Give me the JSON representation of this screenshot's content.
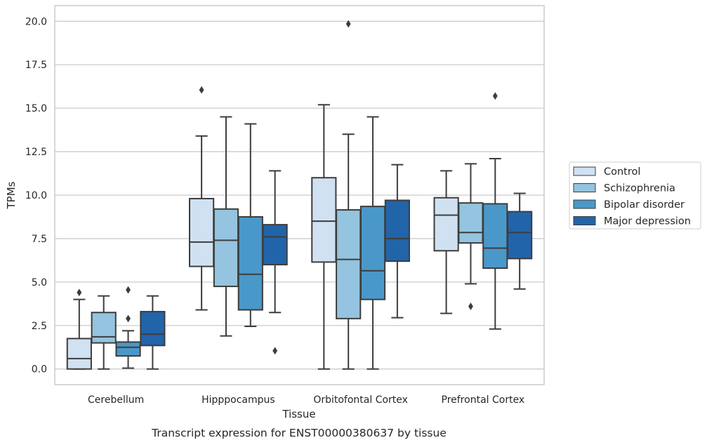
{
  "caption": "Transcript expression for ENST00000380637 by tissue",
  "chart_data": {
    "type": "box",
    "title": "",
    "xlabel": "Tissue",
    "ylabel": "TPMs",
    "ylim": [
      -0.9,
      20.9
    ],
    "yticks": [
      "0.0",
      "2.5",
      "5.0",
      "7.5",
      "10.0",
      "12.5",
      "15.0",
      "17.5",
      "20.0"
    ],
    "grid": "horizontal",
    "legend_position": "right",
    "categories": [
      "Cerebellum",
      "Hipppocampus",
      "Orbitofontal Cortex",
      "Prefrontal Cortex"
    ],
    "series": [
      {
        "name": "Control",
        "color": "#d0e1f2",
        "boxes": [
          {
            "min": 0.0,
            "q1": 0.0,
            "median": 0.6,
            "q3": 1.75,
            "max": 4.0,
            "outliers": [
              4.4
            ]
          },
          {
            "min": 3.4,
            "q1": 5.9,
            "median": 7.3,
            "q3": 9.8,
            "max": 13.4,
            "outliers": [
              16.05
            ]
          },
          {
            "min": 0.0,
            "q1": 6.15,
            "median": 8.5,
            "q3": 11.0,
            "max": 15.2,
            "outliers": []
          },
          {
            "min": 3.2,
            "q1": 6.8,
            "median": 8.85,
            "q3": 9.85,
            "max": 11.4,
            "outliers": []
          }
        ]
      },
      {
        "name": "Schizophrenia",
        "color": "#94c4df",
        "boxes": [
          {
            "min": 0.0,
            "q1": 1.5,
            "median": 1.85,
            "q3": 3.25,
            "max": 4.2,
            "outliers": []
          },
          {
            "min": 1.9,
            "q1": 4.75,
            "median": 7.4,
            "q3": 9.2,
            "max": 14.5,
            "outliers": []
          },
          {
            "min": 0.0,
            "q1": 2.9,
            "median": 6.3,
            "q3": 9.15,
            "max": 13.5,
            "outliers": [
              19.85
            ]
          },
          {
            "min": 4.9,
            "q1": 7.25,
            "median": 7.85,
            "q3": 9.55,
            "max": 11.8,
            "outliers": [
              3.6
            ]
          }
        ]
      },
      {
        "name": "Bipolar disorder",
        "color": "#4a98c9",
        "boxes": [
          {
            "min": 0.05,
            "q1": 0.75,
            "median": 1.25,
            "q3": 1.55,
            "max": 2.2,
            "outliers": [
              2.9,
              4.55
            ]
          },
          {
            "min": 2.45,
            "q1": 3.4,
            "median": 5.45,
            "q3": 8.75,
            "max": 14.1,
            "outliers": []
          },
          {
            "min": 0.0,
            "q1": 4.0,
            "median": 5.65,
            "q3": 9.35,
            "max": 14.5,
            "outliers": []
          },
          {
            "min": 2.3,
            "q1": 5.8,
            "median": 6.95,
            "q3": 9.5,
            "max": 12.1,
            "outliers": [
              15.7
            ]
          }
        ]
      },
      {
        "name": "Major depression",
        "color": "#2264aa",
        "boxes": [
          {
            "min": 0.0,
            "q1": 1.35,
            "median": 2.0,
            "q3": 3.3,
            "max": 4.2,
            "outliers": []
          },
          {
            "min": 3.25,
            "q1": 6.0,
            "median": 7.6,
            "q3": 8.3,
            "max": 11.4,
            "outliers": [
              1.05
            ]
          },
          {
            "min": 2.95,
            "q1": 6.2,
            "median": 7.5,
            "q3": 9.7,
            "max": 11.75,
            "outliers": []
          },
          {
            "min": 4.6,
            "q1": 6.35,
            "median": 7.85,
            "q3": 9.05,
            "max": 10.1,
            "outliers": []
          }
        ]
      }
    ]
  }
}
